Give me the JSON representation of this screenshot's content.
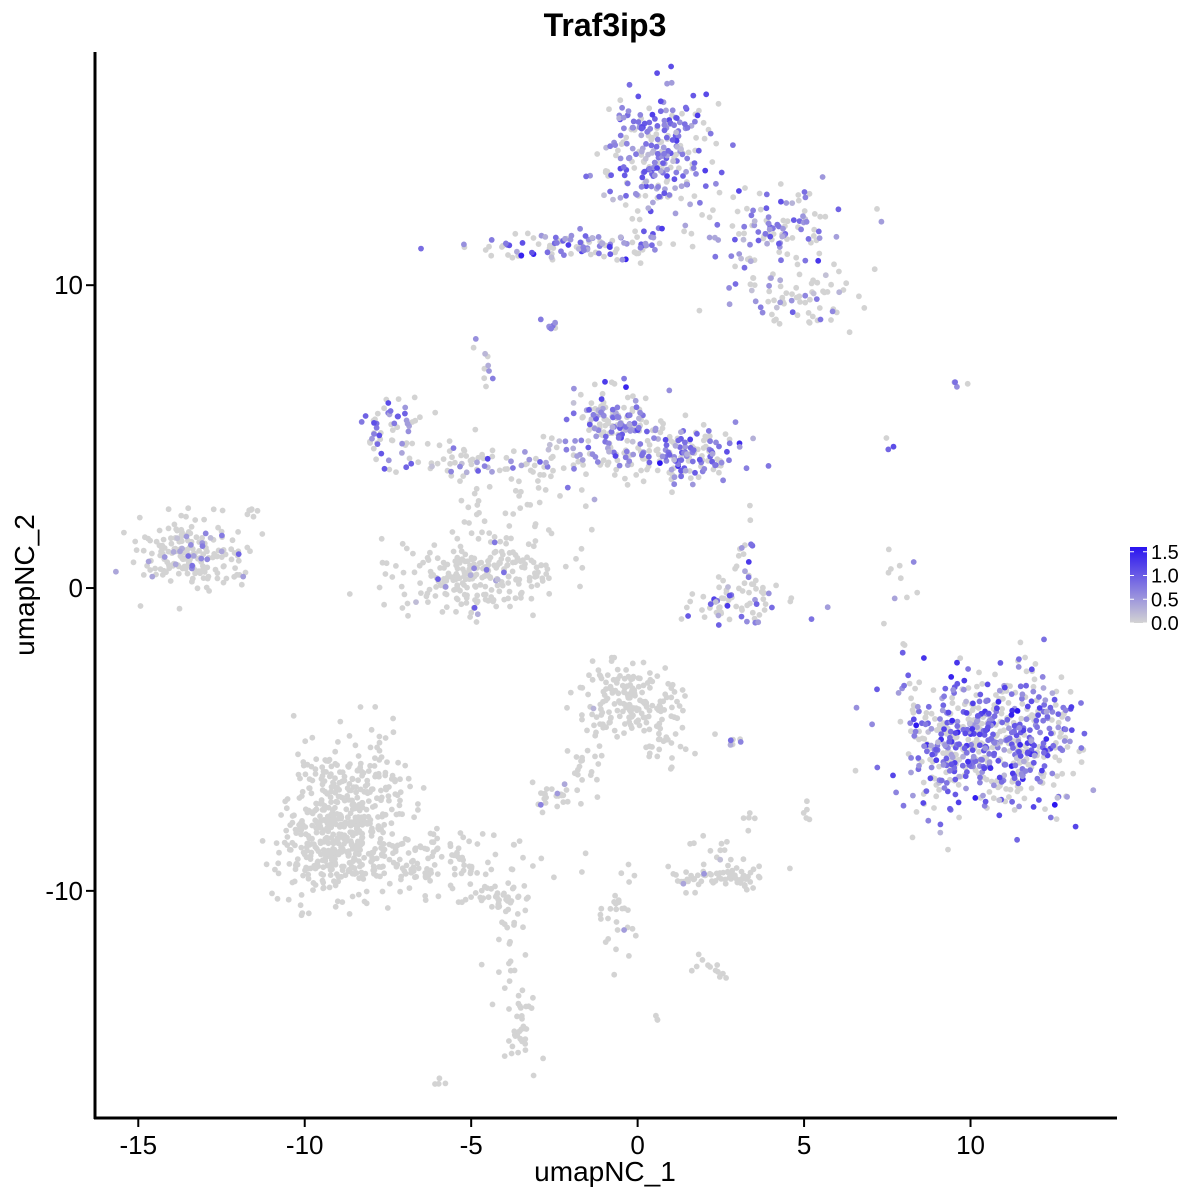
{
  "chart_data": {
    "type": "scatter",
    "title": "Traf3ip3",
    "xlabel": "umapNC_1",
    "ylabel": "umapNC_2",
    "xlim": [
      -16.3,
      14.4
    ],
    "ylim": [
      -17.5,
      17.7
    ],
    "xticks": [
      -15,
      -10,
      -5,
      0,
      5,
      10
    ],
    "xtick_labels": [
      "-15",
      "-10",
      "-5",
      "0",
      "5",
      "10"
    ],
    "yticks": [
      10,
      0,
      -10
    ],
    "ytick_labels": [
      "10",
      "0",
      "-10"
    ],
    "grid": false,
    "color_scale": {
      "low_color": "#d3d3d3",
      "high_color": "#2a14f0",
      "min": 0.0,
      "max": 1.6,
      "legend_values": [
        1.5,
        1.0,
        0.5,
        0.0
      ],
      "legend_labels": [
        "1.5",
        "1.0",
        "0.5",
        "0.0"
      ],
      "legend_position": "right"
    },
    "clusters": [
      {
        "cx": 0.7,
        "cy": 14.3,
        "sx": 0.85,
        "sy": 1.0,
        "n": 260,
        "expr_rate": 0.68,
        "expr_mean": 0.75
      },
      {
        "cx": 4.3,
        "cy": 11.8,
        "sx": 1.0,
        "sy": 0.7,
        "n": 110,
        "expr_rate": 0.55,
        "expr_mean": 0.7
      },
      {
        "cx": -1.5,
        "cy": 11.3,
        "sx": 1.9,
        "sy": 0.25,
        "n": 120,
        "expr_rate": 0.5,
        "expr_mean": 0.75
      },
      {
        "cx": 4.8,
        "cy": 9.6,
        "sx": 0.9,
        "sy": 0.5,
        "n": 70,
        "expr_rate": 0.25,
        "expr_mean": 0.55
      },
      {
        "cx": -2.6,
        "cy": 8.7,
        "sx": 0.15,
        "sy": 0.15,
        "n": 8,
        "expr_rate": 0.8,
        "expr_mean": 0.6
      },
      {
        "cx": -4.6,
        "cy": 7.2,
        "sx": 0.2,
        "sy": 0.4,
        "n": 10,
        "expr_rate": 0.6,
        "expr_mean": 0.4
      },
      {
        "cx": -0.8,
        "cy": 5.5,
        "sx": 0.6,
        "sy": 0.55,
        "n": 140,
        "expr_rate": 0.6,
        "expr_mean": 0.7
      },
      {
        "cx": 1.6,
        "cy": 4.4,
        "sx": 0.8,
        "sy": 0.5,
        "n": 130,
        "expr_rate": 0.55,
        "expr_mean": 0.8
      },
      {
        "cx": -1.0,
        "cy": 4.2,
        "sx": 1.3,
        "sy": 0.4,
        "n": 80,
        "expr_rate": 0.45,
        "expr_mean": 0.65
      },
      {
        "cx": -7.3,
        "cy": 5.2,
        "sx": 0.5,
        "sy": 0.6,
        "n": 60,
        "expr_rate": 0.55,
        "expr_mean": 0.7
      },
      {
        "cx": -5.3,
        "cy": 4.2,
        "sx": 0.9,
        "sy": 0.35,
        "n": 45,
        "expr_rate": 0.35,
        "expr_mean": 0.6
      },
      {
        "cx": -3.3,
        "cy": 3.0,
        "sx": 1.1,
        "sy": 0.9,
        "n": 55,
        "expr_rate": 0.05,
        "expr_mean": 0.4
      },
      {
        "cx": -4.8,
        "cy": 0.4,
        "sx": 1.2,
        "sy": 0.6,
        "n": 260,
        "expr_rate": 0.05,
        "expr_mean": 0.5
      },
      {
        "cx": -13.4,
        "cy": 1.1,
        "sx": 0.75,
        "sy": 0.55,
        "n": 200,
        "expr_rate": 0.1,
        "expr_mean": 0.5
      },
      {
        "cx": -11.6,
        "cy": 2.5,
        "sx": 0.15,
        "sy": 0.15,
        "n": 6,
        "expr_rate": 0.0,
        "expr_mean": 0.3
      },
      {
        "cx": 3.3,
        "cy": -0.5,
        "sx": 0.9,
        "sy": 0.4,
        "n": 70,
        "expr_rate": 0.35,
        "expr_mean": 0.8
      },
      {
        "cx": 3.2,
        "cy": 1.0,
        "sx": 0.2,
        "sy": 0.6,
        "n": 18,
        "expr_rate": 0.3,
        "expr_mean": 0.7
      },
      {
        "cx": 10.5,
        "cy": -5.0,
        "sx": 1.35,
        "sy": 1.1,
        "n": 650,
        "expr_rate": 0.55,
        "expr_mean": 0.85
      },
      {
        "cx": 8.0,
        "cy": 0.5,
        "sx": 0.3,
        "sy": 0.9,
        "n": 10,
        "expr_rate": 0.25,
        "expr_mean": 0.6
      },
      {
        "cx": 9.7,
        "cy": 6.8,
        "sx": 0.15,
        "sy": 0.1,
        "n": 4,
        "expr_rate": 0.5,
        "expr_mean": 0.8
      },
      {
        "cx": 7.6,
        "cy": 4.8,
        "sx": 0.1,
        "sy": 0.15,
        "n": 3,
        "expr_rate": 0.6,
        "expr_mean": 0.9
      },
      {
        "cx": -0.4,
        "cy": -3.7,
        "sx": 0.7,
        "sy": 0.55,
        "n": 150,
        "expr_rate": 0.02,
        "expr_mean": 0.4
      },
      {
        "cx": 0.6,
        "cy": -4.8,
        "sx": 0.5,
        "sy": 0.6,
        "n": 40,
        "expr_rate": 0.0,
        "expr_mean": 0.3
      },
      {
        "cx": -1.5,
        "cy": -5.5,
        "sx": 0.3,
        "sy": 0.8,
        "n": 25,
        "expr_rate": 0.0,
        "expr_mean": 0.3
      },
      {
        "cx": -2.5,
        "cy": -6.9,
        "sx": 0.4,
        "sy": 0.2,
        "n": 25,
        "expr_rate": 0.05,
        "expr_mean": 0.4
      },
      {
        "cx": 2.8,
        "cy": -5.0,
        "sx": 0.3,
        "sy": 0.1,
        "n": 8,
        "expr_rate": 0.3,
        "expr_mean": 0.5
      },
      {
        "cx": -8.7,
        "cy": -7.5,
        "sx": 0.9,
        "sy": 1.2,
        "n": 420,
        "expr_rate": 0.0,
        "expr_mean": 0.3
      },
      {
        "cx": -9.6,
        "cy": -8.7,
        "sx": 0.7,
        "sy": 0.7,
        "n": 120,
        "expr_rate": 0.0,
        "expr_mean": 0.3
      },
      {
        "cx": -6.2,
        "cy": -9.1,
        "sx": 1.4,
        "sy": 0.55,
        "n": 130,
        "expr_rate": 0.0,
        "expr_mean": 0.3
      },
      {
        "cx": -4.2,
        "cy": -10.2,
        "sx": 0.4,
        "sy": 0.25,
        "n": 40,
        "expr_rate": 0.0,
        "expr_mean": 0.3
      },
      {
        "cx": -3.8,
        "cy": -12.2,
        "sx": 0.35,
        "sy": 1.2,
        "n": 30,
        "expr_rate": 0.0,
        "expr_mean": 0.3
      },
      {
        "cx": -3.5,
        "cy": -14.7,
        "sx": 0.2,
        "sy": 0.7,
        "n": 30,
        "expr_rate": 0.0,
        "expr_mean": 0.3
      },
      {
        "cx": -6.0,
        "cy": -16.3,
        "sx": 0.08,
        "sy": 0.08,
        "n": 4,
        "expr_rate": 0.0,
        "expr_mean": 0.3
      },
      {
        "cx": 2.4,
        "cy": -9.6,
        "sx": 0.75,
        "sy": 0.2,
        "n": 70,
        "expr_rate": 0.02,
        "expr_mean": 0.4
      },
      {
        "cx": 2.3,
        "cy": -8.7,
        "sx": 0.4,
        "sy": 0.25,
        "n": 12,
        "expr_rate": 0.0,
        "expr_mean": 0.3
      },
      {
        "cx": -0.6,
        "cy": -10.8,
        "sx": 0.3,
        "sy": 1.0,
        "n": 30,
        "expr_rate": 0.05,
        "expr_mean": 0.5
      },
      {
        "cx": 2.4,
        "cy": -12.6,
        "sx": 0.3,
        "sy": 0.2,
        "n": 12,
        "expr_rate": 0.0,
        "expr_mean": 0.3
      },
      {
        "cx": 0.6,
        "cy": -14.2,
        "sx": 0.05,
        "sy": 0.05,
        "n": 3,
        "expr_rate": 0.0,
        "expr_mean": 0.3
      },
      {
        "cx": 3.4,
        "cy": -7.6,
        "sx": 0.1,
        "sy": 0.25,
        "n": 5,
        "expr_rate": 0.0,
        "expr_mean": 0.3
      },
      {
        "cx": 5.1,
        "cy": -7.4,
        "sx": 0.08,
        "sy": 0.15,
        "n": 5,
        "expr_rate": 0.0,
        "expr_mean": 0.3
      },
      {
        "cx": 8.0,
        "cy": -1.8,
        "sx": 0.05,
        "sy": 0.05,
        "n": 2,
        "expr_rate": 0.0,
        "expr_mean": 0.3
      }
    ]
  }
}
